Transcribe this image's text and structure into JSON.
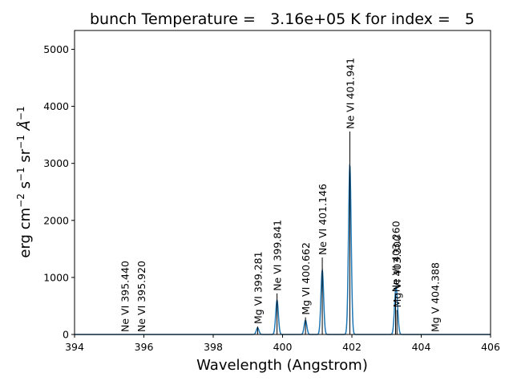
{
  "chart_data": {
    "type": "line",
    "title": "bunch Temperature =   3.16e+05 K for index =   5",
    "xlabel": "Wavelength (Angstrom)",
    "ylabel_parts": [
      "erg cm",
      "−2",
      " s",
      "−1",
      " sr",
      "−1",
      "Å",
      "−1"
    ],
    "xlim": [
      394,
      406
    ],
    "ylim": [
      0,
      5330
    ],
    "xticks": [
      394,
      396,
      398,
      400,
      402,
      404,
      406
    ],
    "yticks": [
      0,
      1000,
      2000,
      3000,
      4000,
      5000
    ],
    "grid": false,
    "spectrum_color": "#1f77b4",
    "line_marker_color": "#000000",
    "line_width_angstrom": 0.09,
    "lines": [
      {
        "ion": "Ne VI",
        "wvl": "395.440",
        "x": 395.44,
        "intensity": 0
      },
      {
        "ion": "Ne VI",
        "wvl": "395.920",
        "x": 395.92,
        "intensity": 0
      },
      {
        "ion": "Mg VI",
        "wvl": "399.281",
        "x": 399.281,
        "intensity": 140
      },
      {
        "ion": "Ne VI",
        "wvl": "399.841",
        "x": 399.841,
        "intensity": 720
      },
      {
        "ion": "Mg VI",
        "wvl": "400.662",
        "x": 400.662,
        "intensity": 300
      },
      {
        "ion": "Ne VI",
        "wvl": "401.146",
        "x": 401.146,
        "intensity": 1350
      },
      {
        "ion": "Ne VI",
        "wvl": "401.941",
        "x": 401.941,
        "intensity": 3560
      },
      {
        "ion": "Ne VI",
        "wvl": "403.260",
        "x": 403.26,
        "intensity": 700
      },
      {
        "ion": "Mg VI",
        "wvl": "403.300",
        "x": 403.3,
        "intensity": 430
      },
      {
        "ion": "Mg V",
        "wvl": "404.388",
        "x": 404.388,
        "intensity": 0
      }
    ]
  }
}
